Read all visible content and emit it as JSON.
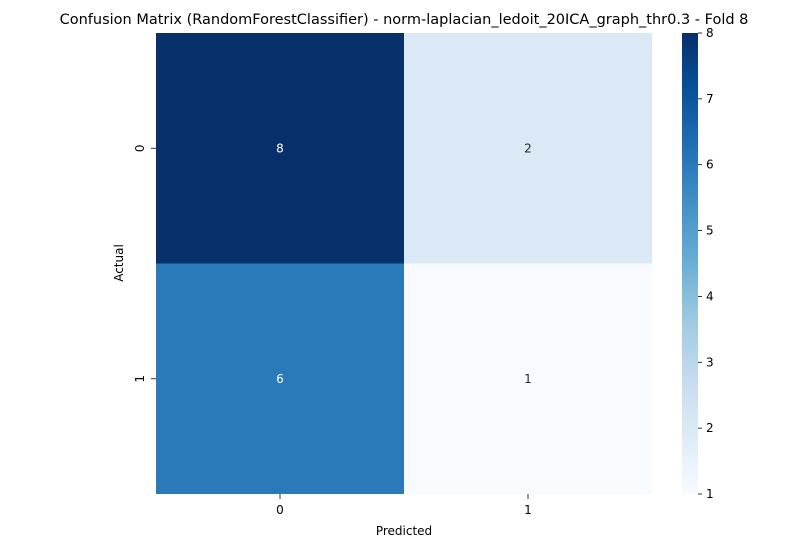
{
  "chart_data": {
    "type": "heatmap",
    "title": "Confusion Matrix (RandomForestClassifier) - norm-laplacian_ledoit_20ICA_graph_thr0.3 - Fold 8",
    "xlabel": "Predicted",
    "ylabel": "Actual",
    "x_categories": [
      "0",
      "1"
    ],
    "y_categories": [
      "0",
      "1"
    ],
    "values": [
      [
        8,
        2
      ],
      [
        6,
        1
      ]
    ],
    "colorbar": {
      "min": 1,
      "max": 8,
      "ticks": [
        "1",
        "2",
        "3",
        "4",
        "5",
        "6",
        "7",
        "8"
      ]
    },
    "colormap": "Blues",
    "grid": false,
    "legend": "right colorbar"
  }
}
